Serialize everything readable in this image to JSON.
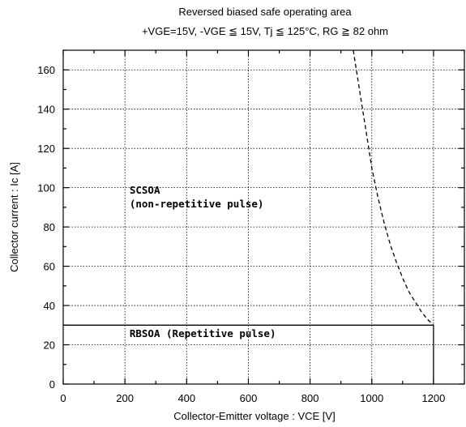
{
  "chart_data": {
    "type": "line",
    "title": "Reversed biased safe operating area",
    "subtitle": "+VGE=15V,  -VGE ≦ 15V,  Tj ≦ 125°C,  RG ≧ 82 ohm",
    "xlabel": "Collector-Emitter voltage  :  VCE [V]",
    "ylabel": "Collector current  :  Ic [A]",
    "xlim": [
      0,
      1300
    ],
    "ylim": [
      0,
      170
    ],
    "x_ticks": [
      0,
      200,
      400,
      600,
      800,
      1000,
      1200
    ],
    "y_ticks": [
      0,
      20,
      40,
      60,
      80,
      100,
      120,
      140,
      160
    ],
    "x_tick_labels": [
      "0",
      "200",
      "400",
      "600",
      "800",
      "1000",
      "1200"
    ],
    "y_tick_labels": [
      "0",
      "20",
      "40",
      "60",
      "80",
      "100",
      "120",
      "140",
      "160"
    ],
    "grid": true,
    "series": [
      {
        "name": "RBSOA (Repetitive pulse)",
        "style": "solid",
        "color": "#000000",
        "x": [
          0,
          1200,
          1200
        ],
        "y": [
          30,
          30,
          0
        ]
      },
      {
        "name": "SCSOA (non-repetitive pulse)",
        "style": "dashed",
        "color": "#000000",
        "x": [
          940,
          960,
          980,
          1000,
          1020,
          1040,
          1060,
          1080,
          1100,
          1120,
          1140,
          1160,
          1180,
          1200
        ],
        "y": [
          170,
          150,
          130,
          110,
          95,
          82,
          71,
          62,
          54,
          47,
          42,
          37,
          33,
          30
        ]
      }
    ],
    "annotations": [
      {
        "text": "SCSOA",
        "x": 215,
        "y": 97
      },
      {
        "text": "(non-repetitive pulse)",
        "x": 215,
        "y": 90
      },
      {
        "text": "RBSOA (Repetitive pulse)",
        "x": 215,
        "y": 24
      }
    ]
  }
}
